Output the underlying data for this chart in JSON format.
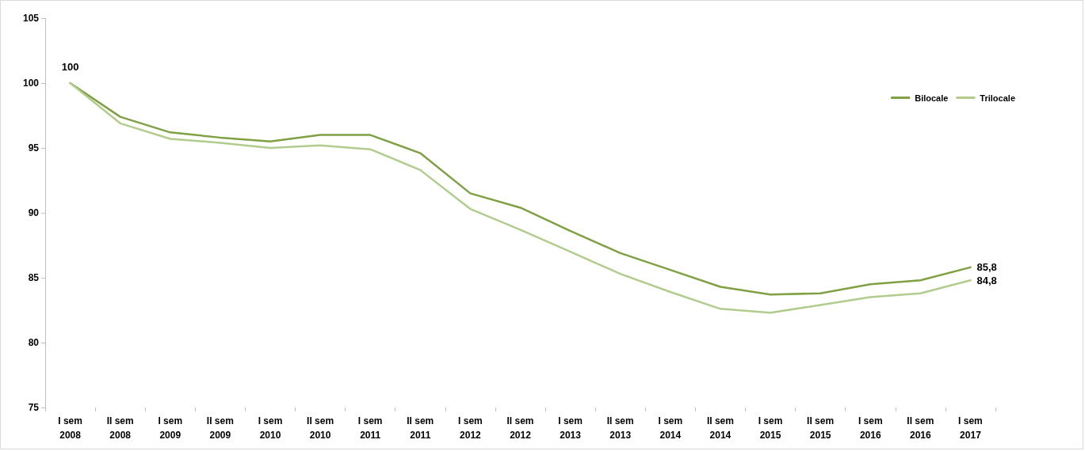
{
  "chart_data": {
    "type": "line",
    "categories": [
      "I sem\n2008",
      "II sem\n2008",
      "I sem\n2009",
      "II sem\n2009",
      "I sem\n2010",
      "II sem\n2010",
      "I sem\n2011",
      "II sem\n2011",
      "I sem\n2012",
      "II sem\n2012",
      "I sem\n2013",
      "II sem\n2013",
      "I sem\n2014",
      "II sem\n2014",
      "I sem\n2015",
      "II sem\n2015",
      "I sem\n2016",
      "II sem\n2016",
      "I sem\n2017"
    ],
    "series": [
      {
        "name": "Bilocale",
        "color": "#7fa043",
        "values": [
          100,
          97.4,
          96.2,
          95.8,
          95.5,
          96.0,
          96.0,
          94.6,
          91.5,
          90.4,
          88.6,
          86.9,
          85.6,
          84.3,
          83.7,
          83.8,
          84.5,
          84.8,
          85.8
        ],
        "value_labels": [
          "100",
          null,
          null,
          null,
          null,
          null,
          null,
          null,
          null,
          null,
          null,
          null,
          null,
          null,
          null,
          null,
          null,
          null,
          "85,8"
        ]
      },
      {
        "name": "Trilocale",
        "color": "#b1cc8c",
        "values": [
          100,
          96.9,
          95.7,
          95.4,
          95.0,
          95.2,
          94.9,
          93.3,
          90.3,
          88.7,
          87.0,
          85.3,
          83.9,
          82.6,
          82.3,
          82.9,
          83.5,
          83.8,
          84.8
        ],
        "value_labels": [
          null,
          null,
          null,
          null,
          null,
          null,
          null,
          null,
          null,
          null,
          null,
          null,
          null,
          null,
          null,
          null,
          null,
          null,
          "84,8"
        ]
      }
    ],
    "ylim": [
      75,
      105
    ],
    "yticks": [
      75,
      80,
      85,
      90,
      95,
      100,
      105
    ],
    "grid": false,
    "legend": "top right",
    "marker": "none",
    "line_style": "solid"
  }
}
